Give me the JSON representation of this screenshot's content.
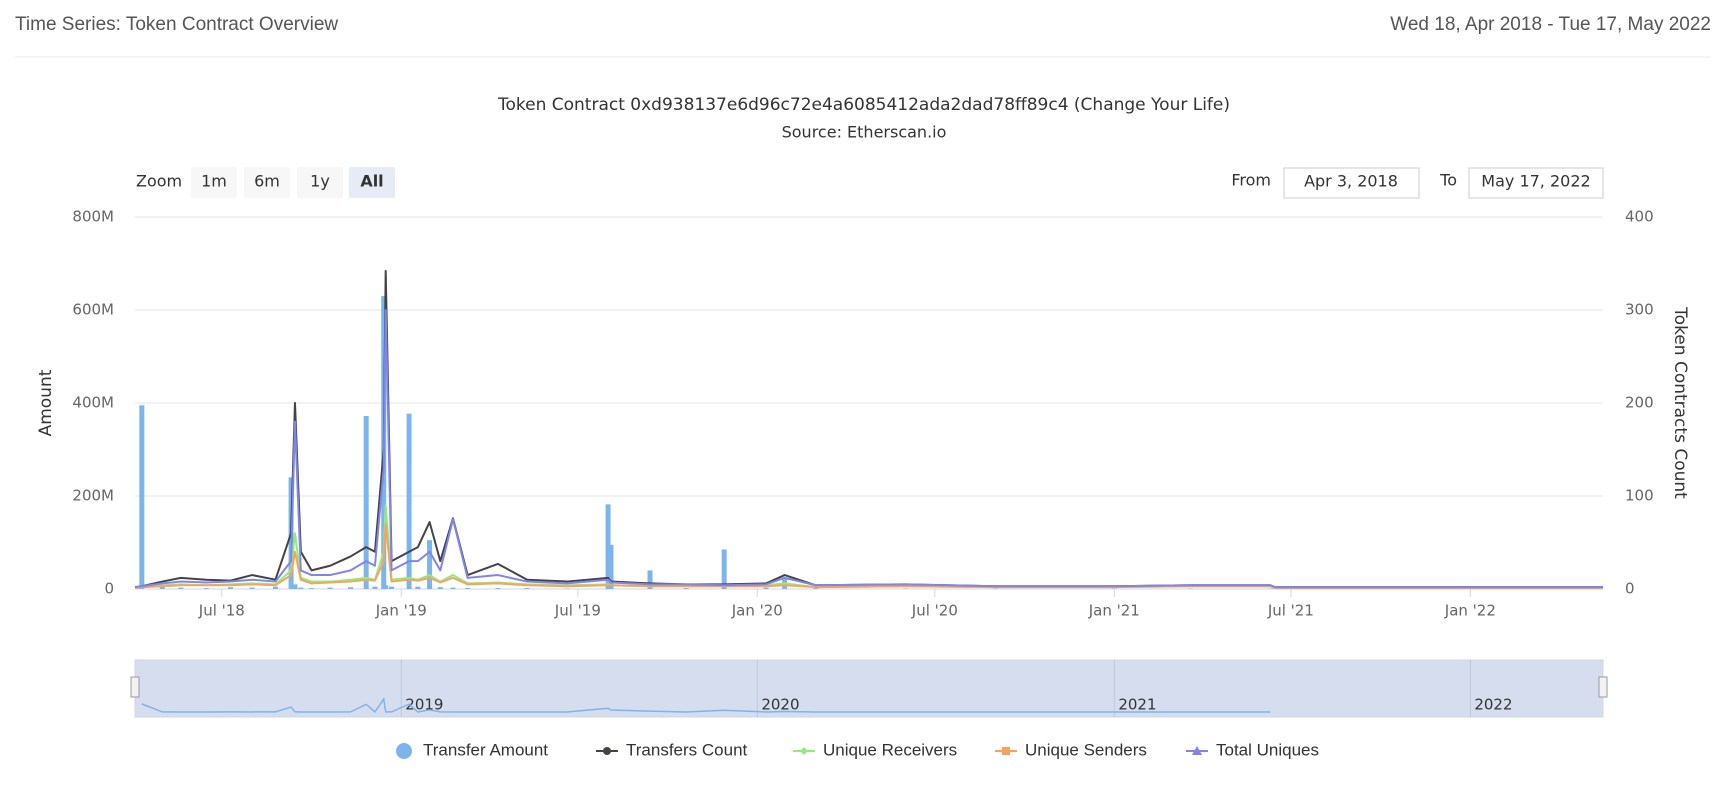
{
  "header": {
    "title": "Time Series: Token Contract Overview",
    "range": "Wed 18, Apr 2018 - Tue 17, May 2022"
  },
  "controls": {
    "zoom": "Zoom",
    "buttons": [
      "1m",
      "6m",
      "1y",
      "All"
    ],
    "selected": "All",
    "from_label": "From",
    "from": "Apr 3, 2018",
    "to_label": "To",
    "to": "May 17, 2022"
  },
  "navigator": {
    "ticks": [
      {
        "value": "2019-01-01",
        "label": "2019"
      },
      {
        "value": "2020-01-01",
        "label": "2020"
      },
      {
        "value": "2021-01-01",
        "label": "2021"
      },
      {
        "value": "2022-01-01",
        "label": "2022"
      }
    ]
  },
  "chart_data": {
    "type": "combo",
    "title": "Token Contract 0xd938137e6d96c72e4a6085412ada2dad78ff89c4 (Change Your Life)",
    "subtitle": "Source: Etherscan.io",
    "y_label": "Amount",
    "y2_label": "Token Contracts Count",
    "xlim": [
      "2018-04-03",
      "2022-05-17"
    ],
    "xticks": [
      {
        "value": "2018-07-01",
        "label": "Jul '18"
      },
      {
        "value": "2019-01-01",
        "label": "Jan '19"
      },
      {
        "value": "2019-07-01",
        "label": "Jul '19"
      },
      {
        "value": "2020-01-01",
        "label": "Jan '20"
      },
      {
        "value": "2020-07-01",
        "label": "Jul '20"
      },
      {
        "value": "2021-01-01",
        "label": "Jan '21"
      },
      {
        "value": "2021-07-01",
        "label": "Jul '21"
      },
      {
        "value": "2022-01-01",
        "label": "Jan '22"
      }
    ],
    "ylim": [
      0,
      800000000
    ],
    "yticks": [
      0,
      {
        "value": 200000000,
        "label": "200M"
      },
      {
        "value": 400000000,
        "label": "400M"
      },
      {
        "value": 600000000,
        "label": "600M"
      },
      {
        "value": 800000000,
        "label": "800M"
      }
    ],
    "y2lim": [
      0,
      400
    ],
    "y2ticks": [
      0,
      100,
      200,
      300,
      400
    ],
    "grid": true,
    "x": [
      "2018-04-03",
      "2018-04-10",
      "2018-05-01",
      "2018-05-20",
      "2018-06-15",
      "2018-07-10",
      "2018-08-01",
      "2018-08-25",
      "2018-09-10",
      "2018-09-14",
      "2018-09-20",
      "2018-10-01",
      "2018-10-20",
      "2018-11-10",
      "2018-11-26",
      "2018-12-05",
      "2018-12-14",
      "2018-12-16",
      "2018-12-22",
      "2019-01-09",
      "2019-01-18",
      "2019-01-30",
      "2019-02-10",
      "2019-02-23",
      "2019-03-10",
      "2019-04-10",
      "2019-05-10",
      "2019-06-20",
      "2019-08-01",
      "2019-08-04",
      "2019-09-13",
      "2019-10-20",
      "2019-11-28",
      "2020-01-10",
      "2020-01-29",
      "2020-03-01",
      "2020-06-01",
      "2020-09-01",
      "2021-01-01",
      "2021-03-20",
      "2021-06-10",
      "2021-06-15",
      "2021-12-01",
      "2022-05-17"
    ],
    "series": [
      {
        "name": "Transfer Amount",
        "kind": "column",
        "color": "#7cb5ec",
        "values": [
          null,
          395000000,
          5000000,
          3000000,
          2000000,
          4000000,
          3000000,
          5000000,
          240000000,
          10000000,
          3000000,
          2000000,
          3000000,
          4000000,
          372000000,
          5000000,
          630000000,
          8000000,
          5000000,
          377000000,
          5000000,
          105000000,
          4000000,
          3000000,
          2000000,
          2000000,
          2000000,
          1000000,
          182000000,
          95000000,
          40000000,
          2000000,
          85000000,
          3000000,
          25000000,
          2000000,
          1000000,
          1000000,
          1000000,
          1000000,
          1000000,
          null,
          null,
          null
        ]
      },
      {
        "name": "Transfers Count",
        "kind": "line",
        "marker": "circle",
        "axis": "y2",
        "color": "#434348",
        "values": [
          2,
          3,
          8,
          12,
          10,
          9,
          15,
          10,
          60,
          200,
          40,
          20,
          25,
          35,
          45,
          40,
          150,
          342,
          30,
          40,
          45,
          72,
          30,
          76,
          15,
          27,
          10,
          8,
          12,
          8,
          6,
          5,
          5,
          6,
          15,
          4,
          5,
          3,
          3,
          4,
          4,
          2,
          2,
          2
        ]
      },
      {
        "name": "Unique Receivers",
        "kind": "line",
        "marker": "diamond",
        "axis": "y2",
        "color": "#90ed7d",
        "values": [
          1,
          2,
          4,
          5,
          4,
          5,
          6,
          5,
          20,
          60,
          12,
          8,
          8,
          10,
          12,
          10,
          40,
          90,
          10,
          12,
          10,
          15,
          8,
          15,
          6,
          7,
          5,
          4,
          5,
          4,
          3,
          3,
          3,
          4,
          6,
          2,
          3,
          2,
          2,
          3,
          3,
          1,
          1,
          1
        ]
      },
      {
        "name": "Unique Senders",
        "kind": "line",
        "marker": "square",
        "axis": "y2",
        "color": "#f7a35c",
        "values": [
          1,
          2,
          3,
          4,
          4,
          4,
          5,
          4,
          15,
          40,
          10,
          6,
          7,
          8,
          10,
          9,
          30,
          70,
          8,
          10,
          9,
          12,
          7,
          12,
          5,
          6,
          4,
          3,
          4,
          4,
          3,
          3,
          3,
          3,
          4,
          2,
          3,
          2,
          2,
          3,
          3,
          1,
          1,
          1
        ]
      },
      {
        "name": "Total Uniques",
        "kind": "line",
        "marker": "triangle",
        "axis": "y2",
        "color": "#8085e9",
        "values": [
          2,
          3,
          6,
          8,
          7,
          8,
          10,
          8,
          30,
          180,
          20,
          15,
          15,
          20,
          30,
          25,
          130,
          300,
          20,
          30,
          30,
          40,
          20,
          75,
          12,
          15,
          8,
          6,
          10,
          7,
          5,
          5,
          4,
          5,
          12,
          4,
          5,
          3,
          3,
          4,
          4,
          2,
          2,
          2
        ]
      }
    ]
  }
}
